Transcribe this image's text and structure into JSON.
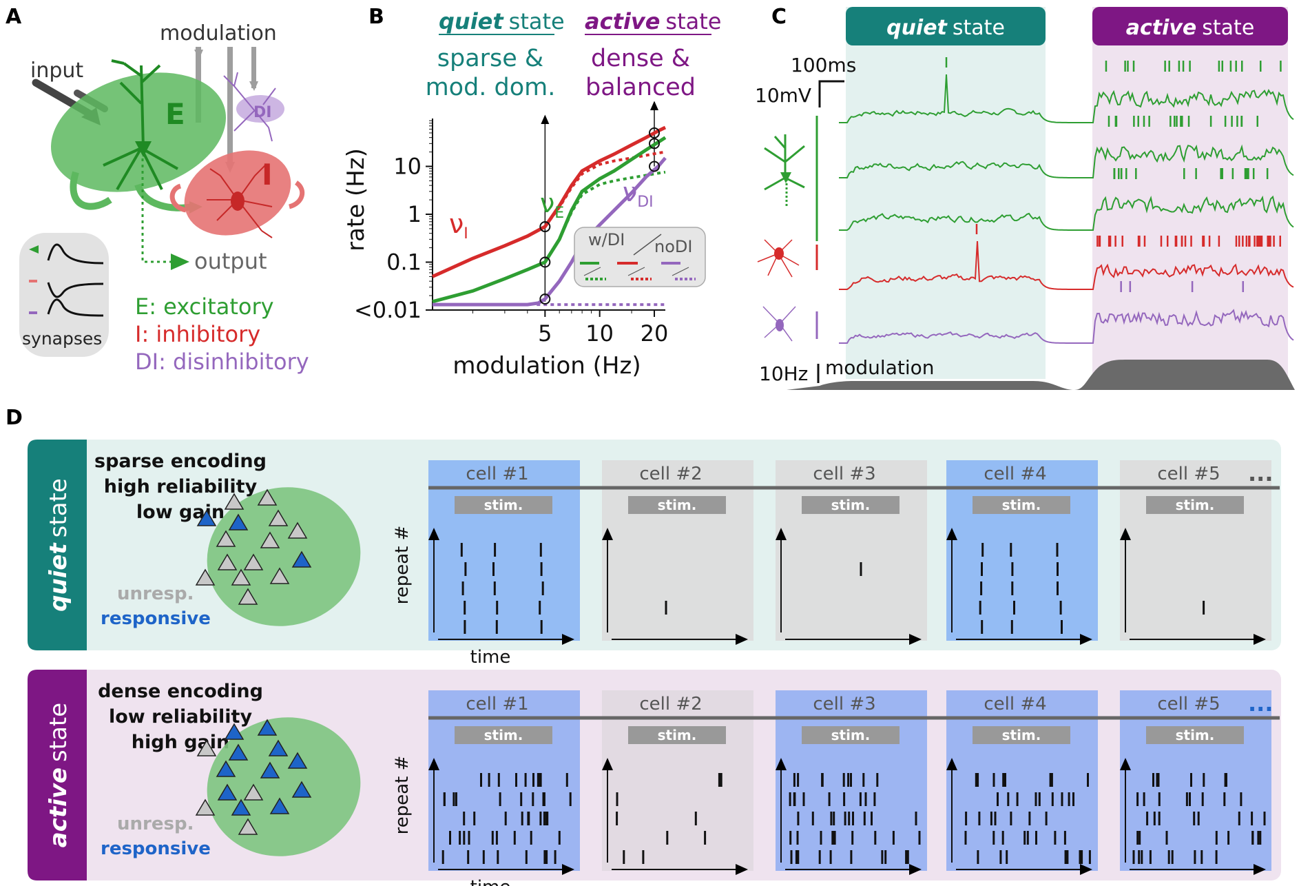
{
  "colors": {
    "excitatory": "#2e9e32",
    "inhibitory": "#d62b2b",
    "disinhibitory": "#9467bd",
    "quiet": "#16807a",
    "active": "#7e1784",
    "quiet_bg": "#e3f1ef",
    "active_bg": "#efe3ef",
    "responsive": "#1e64c8",
    "unresponsive": "#aaaaaa",
    "gray": "#888888"
  },
  "panelA": {
    "label": "A",
    "modulation": "modulation",
    "input": "input",
    "output": "output",
    "E": "E",
    "I": "I",
    "DI": "DI",
    "synapses": "synapses",
    "legend": [
      "E: excitatory",
      "I: inhibitory",
      "DI: disinhibitory"
    ]
  },
  "panelB": {
    "label": "B",
    "quiet_word": "quiet",
    "state_word": "state",
    "active_word": "active",
    "quiet_desc": [
      "sparse &",
      "mod. dom."
    ],
    "active_desc": [
      "dense &",
      "balanced"
    ],
    "legend_wdi": "w/DI",
    "legend_nodi": "noDI"
  },
  "chart_data": {
    "type": "line",
    "xlabel": "modulation (Hz)",
    "ylabel": "rate (Hz)",
    "xscale": "log",
    "yscale": "log",
    "xlim": [
      1.2,
      23
    ],
    "ylim": [
      0.01,
      100
    ],
    "xticks": [
      5,
      10,
      20
    ],
    "xtick_labels": [
      "5",
      "10",
      "20"
    ],
    "yticks": [
      0.01,
      0.1,
      1,
      10
    ],
    "ytick_labels": [
      "<0.01",
      "0.1",
      "1",
      "10"
    ],
    "series": [
      {
        "name": "νI",
        "label": "ν",
        "sub": "I",
        "pop": "I",
        "style": "w/DI",
        "x": [
          1.2,
          2,
          3,
          4,
          5,
          6,
          7,
          8,
          10,
          12,
          15,
          18,
          21,
          23
        ],
        "y": [
          0.05,
          0.12,
          0.22,
          0.35,
          0.55,
          1.5,
          4,
          8,
          13,
          18,
          28,
          40,
          55,
          65
        ]
      },
      {
        "name": "νI noDI",
        "pop": "I",
        "style": "noDI",
        "x": [
          1.2,
          2,
          3,
          4,
          5,
          6,
          7,
          8,
          10,
          12,
          15,
          18,
          21,
          23
        ],
        "y": [
          0.05,
          0.12,
          0.22,
          0.35,
          0.55,
          1.4,
          3.6,
          7,
          11,
          13,
          15,
          17,
          19,
          20
        ]
      },
      {
        "name": "νE",
        "label": "ν",
        "sub": "E",
        "pop": "E",
        "style": "w/DI",
        "x": [
          1.2,
          2,
          3,
          4,
          5,
          6,
          7,
          8,
          10,
          12,
          15,
          18,
          21,
          23
        ],
        "y": [
          0.015,
          0.025,
          0.045,
          0.07,
          0.1,
          0.3,
          1.2,
          3,
          5.5,
          8,
          14,
          22,
          32,
          40
        ]
      },
      {
        "name": "νE noDI",
        "pop": "E",
        "style": "noDI",
        "x": [
          1.2,
          2,
          3,
          4,
          5,
          6,
          7,
          8,
          10,
          12,
          15,
          18,
          21,
          23
        ],
        "y": [
          0.015,
          0.025,
          0.045,
          0.07,
          0.1,
          0.3,
          1.1,
          2.6,
          4.2,
          5,
          5.8,
          6.5,
          7.2,
          7.6
        ]
      },
      {
        "name": "νDI",
        "label": "ν",
        "sub": "DI",
        "pop": "DI",
        "style": "w/DI",
        "x": [
          1.2,
          2,
          3,
          4,
          4.6,
          5,
          6,
          7,
          8,
          10,
          12,
          15,
          18,
          21,
          23
        ],
        "y": [
          0.013,
          0.013,
          0.013,
          0.013,
          0.014,
          0.017,
          0.04,
          0.1,
          0.25,
          0.6,
          1.2,
          2.8,
          6,
          10,
          15
        ]
      },
      {
        "name": "νDI noDI",
        "pop": "DI",
        "style": "noDI",
        "x": [
          4.5,
          23
        ],
        "y": [
          0.013,
          0.013
        ]
      }
    ],
    "markers": [
      {
        "x": 5,
        "y": 0.55
      },
      {
        "x": 5,
        "y": 0.1
      },
      {
        "x": 5,
        "y": 0.017
      },
      {
        "x": 20,
        "y": 50
      },
      {
        "x": 20,
        "y": 30
      },
      {
        "x": 20,
        "y": 10
      }
    ]
  },
  "panelC": {
    "label": "C",
    "quiet_word": "quiet",
    "active_word": "active",
    "state_word": "state",
    "scale_time": "100ms",
    "scale_mv": "10mV",
    "scale_hz": "10Hz",
    "modulation": "modulation"
  },
  "panelD": {
    "label": "D",
    "quiet": {
      "side_italic": "quiet",
      "side_rest": "state",
      "lines": [
        "sparse encoding",
        "high reliability",
        "low gain"
      ],
      "unresp": "unresp.",
      "responsive": "responsive",
      "cells": [
        {
          "label": "cell #1",
          "responsive": true
        },
        {
          "label": "cell #2",
          "responsive": false
        },
        {
          "label": "cell #3",
          "responsive": false
        },
        {
          "label": "cell #4",
          "responsive": true
        },
        {
          "label": "cell #5",
          "responsive": false
        }
      ]
    },
    "active": {
      "side_italic": "active",
      "side_rest": "state",
      "lines": [
        "dense encoding",
        "low reliability",
        "high gain"
      ],
      "unresp": "unresp.",
      "responsive": "responsive",
      "cells": [
        {
          "label": "cell #1",
          "responsive": true
        },
        {
          "label": "cell #2",
          "responsive": false
        },
        {
          "label": "cell #3",
          "responsive": true
        },
        {
          "label": "cell #4",
          "responsive": true
        },
        {
          "label": "cell #5",
          "responsive": true
        }
      ]
    },
    "stim": "stim.",
    "repeat_axis": "repeat #",
    "time_axis": "time",
    "ellipsis": "..."
  }
}
